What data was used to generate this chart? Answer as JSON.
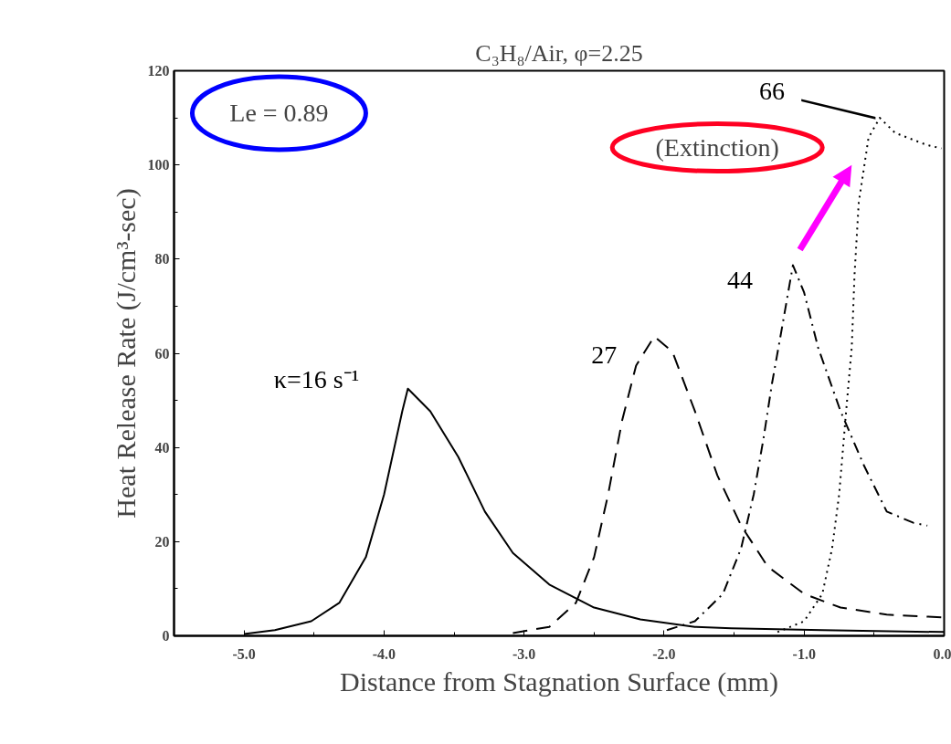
{
  "chart_data": {
    "type": "line",
    "title": "C₃H₈/Air, φ=2.25",
    "xlabel": "Distance from Stagnation Surface (mm)",
    "ylabel": "Heat Release Rate (J/cm³-sec)",
    "xlim": [
      -5.5,
      0.0
    ],
    "xticks": [
      {
        "value": -5.0,
        "label": "-5.0"
      },
      {
        "value": -4.0,
        "label": "-4.0"
      },
      {
        "value": -3.0,
        "label": "-3.0"
      },
      {
        "value": -2.0,
        "label": "-2.0"
      },
      {
        "value": -1.0,
        "label": "-1.0"
      },
      {
        "value": 0.0,
        "label": "0.0"
      }
    ],
    "ylim": [
      0,
      120
    ],
    "yticks": [
      0,
      20,
      40,
      60,
      80,
      100,
      120
    ],
    "grid": false,
    "marker": "none",
    "annotations": [
      "Le = 0.89",
      "(Extinction)"
    ],
    "series": [
      {
        "name": "κ=16 s⁻¹",
        "color": "#000000",
        "line_style": "solid",
        "x": [
          -5.0,
          -4.78,
          -4.52,
          -4.32,
          -4.13,
          -4.0,
          -3.87,
          -3.83,
          -3.67,
          -3.47,
          -3.28,
          -3.08,
          -2.82,
          -2.5,
          -2.17,
          -1.78,
          -1.52,
          -0.87,
          0.0
        ],
        "values": [
          0.4,
          1.2,
          3.1,
          7,
          16.7,
          30,
          47.7,
          52.5,
          47.7,
          38,
          26.4,
          17.6,
          10.9,
          6,
          3.5,
          1.9,
          1.6,
          1.2,
          0.8
        ]
      },
      {
        "name": "27",
        "color": "#000000",
        "line_style": "dashed",
        "x": [
          -3.08,
          -2.82,
          -2.63,
          -2.5,
          -2.4,
          -2.3,
          -2.2,
          -2.07,
          -1.94,
          -1.78,
          -1.62,
          -1.45,
          -1.26,
          -1.0,
          -0.74,
          -0.41,
          0.0
        ],
        "values": [
          0.6,
          1.9,
          7,
          16.7,
          30,
          45.7,
          57.4,
          63.6,
          60.3,
          47.7,
          34.1,
          23.4,
          14.7,
          8.9,
          6,
          4.5,
          3.9
        ]
      },
      {
        "name": "44",
        "color": "#000000",
        "line_style": "dashdot",
        "x": [
          -1.98,
          -1.78,
          -1.58,
          -1.45,
          -1.36,
          -1.29,
          -1.23,
          -1.16,
          -1.08,
          -1.0,
          -0.9,
          -0.74,
          -0.57,
          -0.41,
          -0.22,
          -0.12
        ],
        "values": [
          1.2,
          3.1,
          8.9,
          18.6,
          30,
          41.9,
          53.5,
          65.1,
          78.7,
          72.9,
          61.2,
          47.7,
          36,
          26.4,
          24,
          23.4
        ]
      },
      {
        "name": "66",
        "color": "#000000",
        "line_style": "dotted",
        "x": [
          -1.19,
          -1.0,
          -0.87,
          -0.8,
          -0.75,
          -0.7,
          -0.66,
          -0.64,
          -0.61,
          -0.54,
          -0.46,
          -0.35,
          -0.13,
          -0.02
        ],
        "values": [
          0.8,
          3.1,
          8.9,
          18.6,
          30,
          47.7,
          61.2,
          76.7,
          92,
          105.8,
          110,
          106.8,
          104.3,
          103.5
        ]
      }
    ]
  }
}
